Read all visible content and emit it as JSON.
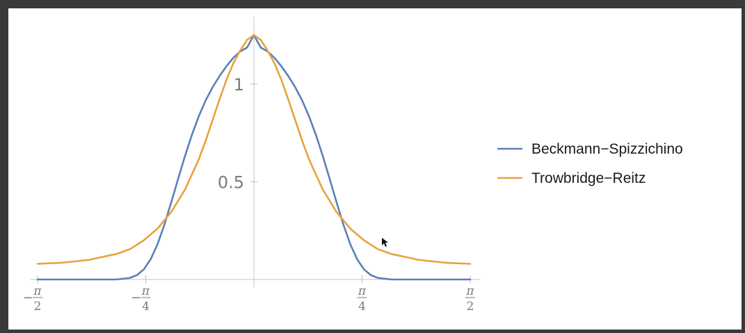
{
  "chart_data": {
    "type": "line",
    "xlim": [
      -1.5707963,
      1.5707963
    ],
    "ylim": [
      0,
      1.28
    ],
    "x_ticks": [
      {
        "value": -1.5707963,
        "sign": "−",
        "num": "π",
        "den": "2"
      },
      {
        "value": -0.7853982,
        "sign": "−",
        "num": "π",
        "den": "4"
      },
      {
        "value": 0.7853982,
        "sign": "",
        "num": "π",
        "den": "4"
      },
      {
        "value": 1.5707963,
        "sign": "",
        "num": "π",
        "den": "2"
      }
    ],
    "y_ticks": [
      {
        "value": 0.5,
        "label": "0.5"
      },
      {
        "value": 1.0,
        "label": "1"
      }
    ],
    "grid": false,
    "legend_position": "right",
    "series": [
      {
        "name": "Beckmann−Spizzichino",
        "color": "#5b7fb8",
        "x": [
          -1.5708,
          -1.2,
          -1.0,
          -0.9,
          -0.85,
          -0.8,
          -0.75,
          -0.7,
          -0.65,
          -0.6,
          -0.55,
          -0.5,
          -0.45,
          -0.4,
          -0.35,
          -0.3,
          -0.25,
          -0.2,
          -0.15,
          -0.1,
          -0.05,
          0.0,
          0.05,
          0.1,
          0.15,
          0.2,
          0.25,
          0.3,
          0.35,
          0.4,
          0.45,
          0.5,
          0.55,
          0.6,
          0.65,
          0.7,
          0.75,
          0.8,
          0.85,
          0.9,
          1.0,
          1.2,
          1.5708
        ],
        "y": [
          0.0,
          0.0,
          0.0,
          0.008,
          0.022,
          0.051,
          0.103,
          0.18,
          0.28,
          0.395,
          0.515,
          0.632,
          0.74,
          0.835,
          0.916,
          0.983,
          1.04,
          1.09,
          1.133,
          1.166,
          1.186,
          1.25,
          1.186,
          1.166,
          1.133,
          1.09,
          1.04,
          0.983,
          0.916,
          0.835,
          0.74,
          0.632,
          0.515,
          0.395,
          0.28,
          0.18,
          0.103,
          0.051,
          0.022,
          0.008,
          0.0,
          0.0,
          0.0
        ]
      },
      {
        "name": "Trowbridge−Reitz",
        "color": "#e8a23c",
        "x": [
          -1.5708,
          -1.4,
          -1.2,
          -1.0,
          -0.9,
          -0.8,
          -0.7,
          -0.6,
          -0.5,
          -0.4,
          -0.35,
          -0.3,
          -0.25,
          -0.2,
          -0.15,
          -0.1,
          -0.05,
          0.0,
          0.05,
          0.1,
          0.15,
          0.2,
          0.25,
          0.3,
          0.35,
          0.4,
          0.5,
          0.6,
          0.7,
          0.8,
          0.9,
          1.0,
          1.2,
          1.4,
          1.5708
        ],
        "y": [
          0.08,
          0.085,
          0.1,
          0.13,
          0.155,
          0.2,
          0.26,
          0.345,
          0.46,
          0.615,
          0.71,
          0.815,
          0.92,
          1.02,
          1.105,
          1.17,
          1.225,
          1.25,
          1.225,
          1.17,
          1.105,
          1.02,
          0.92,
          0.815,
          0.71,
          0.615,
          0.46,
          0.345,
          0.26,
          0.2,
          0.155,
          0.13,
          0.1,
          0.085,
          0.08
        ]
      }
    ]
  }
}
